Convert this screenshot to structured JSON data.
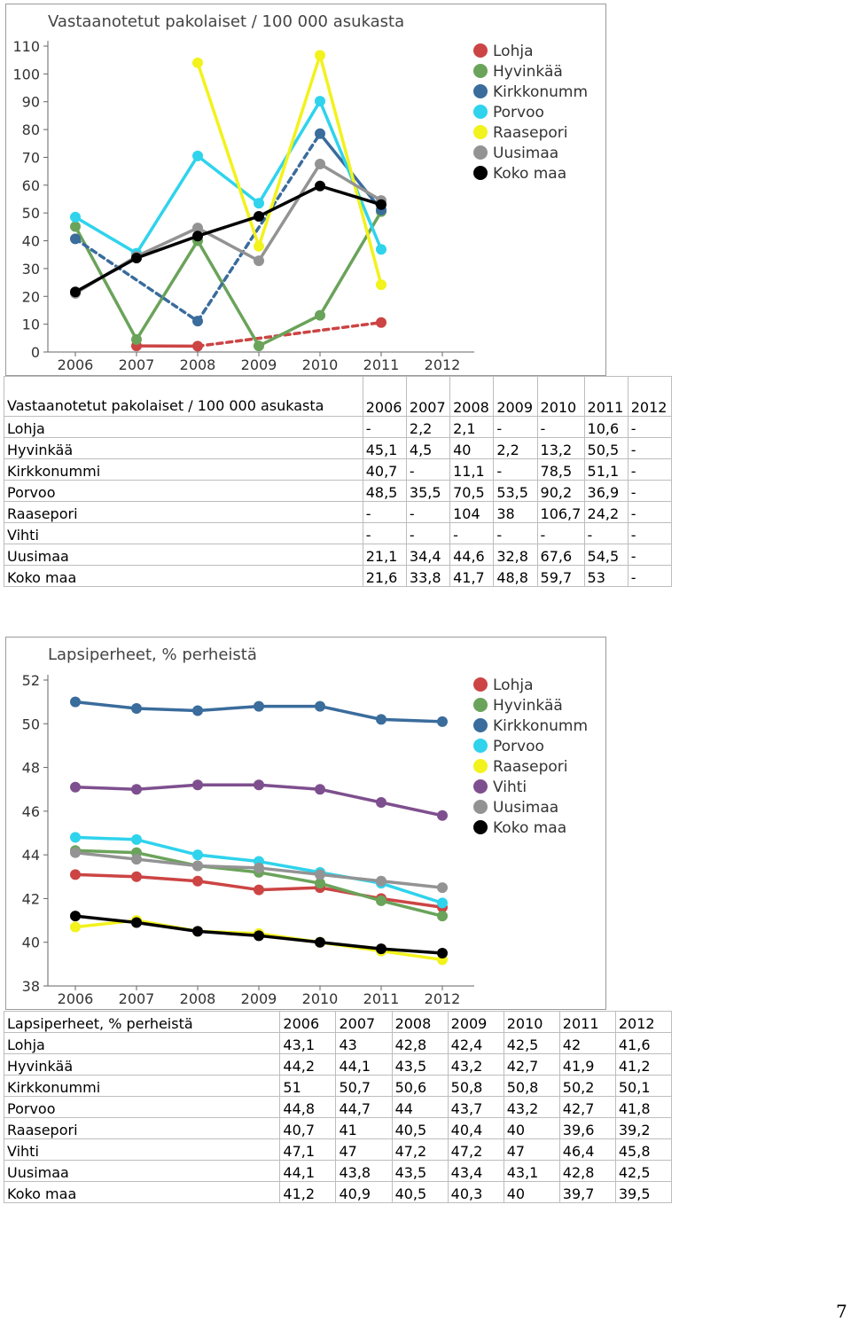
{
  "page_number": "7",
  "chart_data": [
    {
      "type": "line",
      "title": "Vastaanotetut pakolaiset / 100 000 asukasta",
      "categories": [
        "2006",
        "2007",
        "2008",
        "2009",
        "2010",
        "2011",
        "2012"
      ],
      "ylim": [
        0,
        110
      ],
      "yticks": [
        0,
        10,
        20,
        30,
        40,
        50,
        60,
        70,
        80,
        90,
        100,
        110
      ],
      "legend_position": "right",
      "grid": false,
      "series": [
        {
          "name": "Lohja",
          "color": "#cc4444",
          "values": [
            null,
            2.2,
            2.1,
            null,
            null,
            10.6,
            null
          ],
          "dashed_gaps": true
        },
        {
          "name": "Hyvinkää",
          "color": "#6aa35a",
          "values": [
            45.1,
            4.5,
            40,
            2.2,
            13.2,
            50.5,
            null
          ],
          "dashed_gaps": true
        },
        {
          "name": "Kirkkonumm",
          "color": "#3a6c9c",
          "values": [
            40.7,
            null,
            11.1,
            null,
            78.5,
            51.1,
            null
          ],
          "dashed_gaps": true
        },
        {
          "name": "Porvoo",
          "color": "#2fd3ec",
          "values": [
            48.5,
            35.5,
            70.5,
            53.5,
            90.2,
            36.9,
            null
          ],
          "dashed_gaps": true
        },
        {
          "name": "Raasepori",
          "color": "#f2f21c",
          "values": [
            null,
            null,
            104,
            38,
            106.7,
            24.2,
            null
          ],
          "dashed_gaps": true
        },
        {
          "name": "Uusimaa",
          "color": "#939393",
          "values": [
            21.1,
            34.4,
            44.6,
            32.8,
            67.6,
            54.5,
            null
          ],
          "dashed_gaps": true
        },
        {
          "name": "Koko maa",
          "color": "#000000",
          "values": [
            21.6,
            33.8,
            41.7,
            48.8,
            59.7,
            53,
            null
          ],
          "dashed_gaps": true
        }
      ]
    },
    {
      "type": "line",
      "title": "Lapsiperheet, % perheistä",
      "categories": [
        "2006",
        "2007",
        "2008",
        "2009",
        "2010",
        "2011",
        "2012"
      ],
      "ylim": [
        38,
        52
      ],
      "yticks": [
        38,
        40,
        42,
        44,
        46,
        48,
        50,
        52
      ],
      "legend_position": "right",
      "grid": false,
      "series": [
        {
          "name": "Lohja",
          "color": "#cc4444",
          "values": [
            43.1,
            43,
            42.8,
            42.4,
            42.5,
            42,
            41.6
          ]
        },
        {
          "name": "Hyvinkää",
          "color": "#6aa35a",
          "values": [
            44.2,
            44.1,
            43.5,
            43.2,
            42.7,
            41.9,
            41.2
          ]
        },
        {
          "name": "Kirkkonumm",
          "color": "#3a6c9c",
          "values": [
            51,
            50.7,
            50.6,
            50.8,
            50.8,
            50.2,
            50.1
          ]
        },
        {
          "name": "Porvoo",
          "color": "#2fd3ec",
          "values": [
            44.8,
            44.7,
            44,
            43.7,
            43.2,
            42.7,
            41.8
          ]
        },
        {
          "name": "Raasepori",
          "color": "#f2f21c",
          "values": [
            40.7,
            41,
            40.5,
            40.4,
            40,
            39.6,
            39.2
          ]
        },
        {
          "name": "Vihti",
          "color": "#7e4f8e",
          "values": [
            47.1,
            47,
            47.2,
            47.2,
            47,
            46.4,
            45.8
          ]
        },
        {
          "name": "Uusimaa",
          "color": "#939393",
          "values": [
            44.1,
            43.8,
            43.5,
            43.4,
            43.1,
            42.8,
            42.5
          ]
        },
        {
          "name": "Koko maa",
          "color": "#000000",
          "values": [
            41.2,
            40.9,
            40.5,
            40.3,
            40,
            39.7,
            39.5
          ]
        }
      ]
    }
  ],
  "tables": [
    {
      "header": [
        "Vastaanotetut pakolaiset / 100 000 asukasta",
        "2006",
        "2007",
        "2008",
        "2009",
        "2010",
        "2011",
        "2012"
      ],
      "rows": [
        [
          "Lohja",
          "-",
          "2,2",
          "2,1",
          "-",
          "-",
          "10,6",
          "-"
        ],
        [
          "Hyvinkää",
          "45,1",
          "4,5",
          "40",
          "2,2",
          "13,2",
          "50,5",
          "-"
        ],
        [
          "Kirkkonummi",
          "40,7",
          "-",
          "11,1",
          "-",
          "78,5",
          "51,1",
          "-"
        ],
        [
          "Porvoo",
          "48,5",
          "35,5",
          "70,5",
          "53,5",
          "90,2",
          "36,9",
          "-"
        ],
        [
          "Raasepori",
          "-",
          "-",
          "104",
          "38",
          "106,7",
          "24,2",
          "-"
        ],
        [
          "Vihti",
          "-",
          "-",
          "-",
          "-",
          "-",
          "-",
          "-"
        ],
        [
          "Uusimaa",
          "21,1",
          "34,4",
          "44,6",
          "32,8",
          "67,6",
          "54,5",
          "-"
        ],
        [
          "Koko maa",
          "21,6",
          "33,8",
          "41,7",
          "48,8",
          "59,7",
          "53",
          "-"
        ]
      ]
    },
    {
      "header": [
        "Lapsiperheet, % perheistä",
        "2006",
        "2007",
        "2008",
        "2009",
        "2010",
        "2011",
        "2012"
      ],
      "rows": [
        [
          "Lohja",
          "43,1",
          "43",
          "42,8",
          "42,4",
          "42,5",
          "42",
          "41,6"
        ],
        [
          "Hyvinkää",
          "44,2",
          "44,1",
          "43,5",
          "43,2",
          "42,7",
          "41,9",
          "41,2"
        ],
        [
          "Kirkkonummi",
          "51",
          "50,7",
          "50,6",
          "50,8",
          "50,8",
          "50,2",
          "50,1"
        ],
        [
          "Porvoo",
          "44,8",
          "44,7",
          "44",
          "43,7",
          "43,2",
          "42,7",
          "41,8"
        ],
        [
          "Raasepori",
          "40,7",
          "41",
          "40,5",
          "40,4",
          "40",
          "39,6",
          "39,2"
        ],
        [
          "Vihti",
          "47,1",
          "47",
          "47,2",
          "47,2",
          "47",
          "46,4",
          "45,8"
        ],
        [
          "Uusimaa",
          "44,1",
          "43,8",
          "43,5",
          "43,4",
          "43,1",
          "42,8",
          "42,5"
        ],
        [
          "Koko maa",
          "41,2",
          "40,9",
          "40,5",
          "40,3",
          "40",
          "39,7",
          "39,5"
        ]
      ]
    }
  ]
}
